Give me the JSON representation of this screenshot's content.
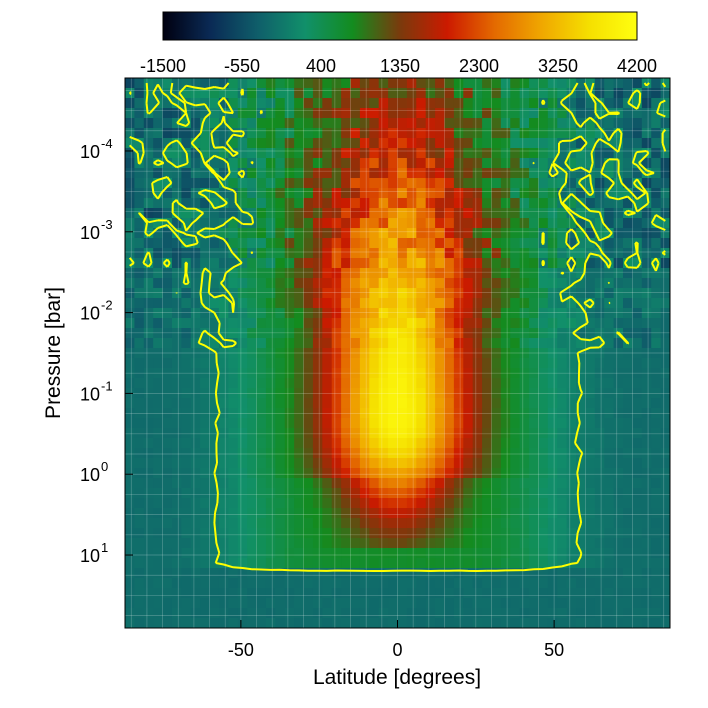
{
  "chart_data": {
    "type": "heatmap",
    "title": "",
    "xlabel": "Latitude [degrees]",
    "ylabel": "Pressure [bar]",
    "x_ticks": [
      {
        "value": -50,
        "label": "-50"
      },
      {
        "value": 0,
        "label": "0"
      },
      {
        "value": 50,
        "label": "50"
      }
    ],
    "y_ticks": [
      {
        "value": 0.0001,
        "base": "10",
        "exp": "-4"
      },
      {
        "value": 0.001,
        "base": "10",
        "exp": "-3"
      },
      {
        "value": 0.01,
        "base": "10",
        "exp": "-2"
      },
      {
        "value": 0.1,
        "base": "10",
        "exp": "-1"
      },
      {
        "value": 1,
        "base": "10",
        "exp": "0"
      },
      {
        "value": 10,
        "base": "10",
        "exp": "1"
      }
    ],
    "xlim": [
      -87,
      87
    ],
    "ylim_pressure_bar": [
      1.25e-05,
      80
    ],
    "y_scale": "log",
    "y_inverted": true,
    "grid": true,
    "colorbar": {
      "position": "top",
      "ticks": [
        "-1500",
        "-550",
        "400",
        "1350",
        "2300",
        "3250",
        "4200"
      ],
      "range": [
        -1500,
        4200
      ],
      "colormap": [
        "#000010",
        "#0a2a55",
        "#0f5e6a",
        "#11906a",
        "#138c1f",
        "#7a3a0c",
        "#cc1a00",
        "#e46a00",
        "#f0a800",
        "#f5e000",
        "#ffff10"
      ]
    },
    "zero_contour_color": "#ffff00",
    "field_description_values": {
      "jet_peak": 4000,
      "jet_core_latitude": 0,
      "jet_core_pressure_bar": 0.2,
      "background": -200
    }
  }
}
